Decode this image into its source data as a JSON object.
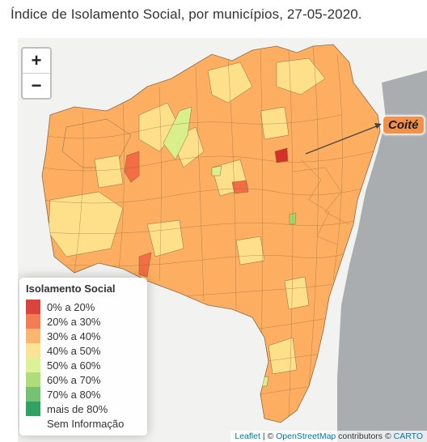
{
  "title": "Índice de Isolamento Social, por municípios, 27-05-2020.",
  "map": {
    "zoom_in": "+",
    "zoom_out": "−",
    "callout": "Coité",
    "ocean_color": "#a9adb0",
    "land_color": "#f2f2f0",
    "region_fill_dominant": "#fdae61",
    "region_fill_secondary": "#fee08b",
    "region_fill_low": "#f46d43"
  },
  "legend": {
    "title": "Isolamento Social",
    "items": [
      {
        "label": "0% a 20%",
        "color": "#d73027"
      },
      {
        "label": "20% a 30%",
        "color": "#f46d43"
      },
      {
        "label": "30% a 40%",
        "color": "#fdae61"
      },
      {
        "label": "40% a 50%",
        "color": "#fee08b"
      },
      {
        "label": "50% a 60%",
        "color": "#d9ef8b"
      },
      {
        "label": "60% a 70%",
        "color": "#a6d96a"
      },
      {
        "label": "70% a 80%",
        "color": "#66bd63"
      },
      {
        "label": "mais de 80%",
        "color": "#1a9850"
      },
      {
        "label": "Sem Informação",
        "color": "transparent"
      }
    ]
  },
  "attribution": {
    "leaflet": "Leaflet",
    "sep1": " | © ",
    "osm": "OpenStreetMap",
    "contrib": " contributors © ",
    "carto": "CARTO"
  }
}
